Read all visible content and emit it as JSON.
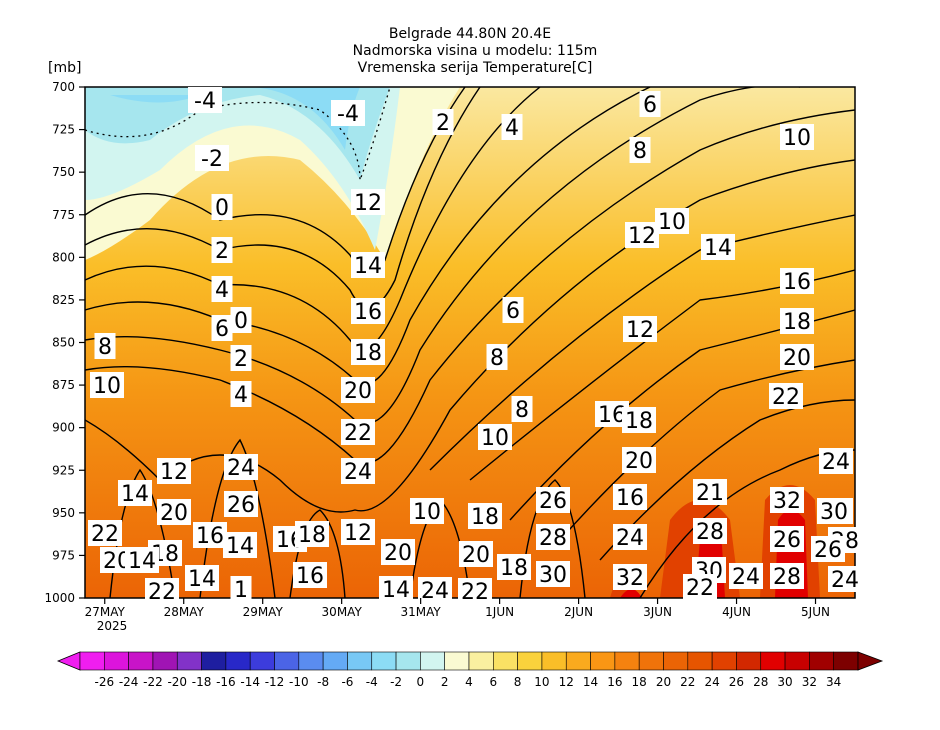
{
  "chart_data": {
    "type": "contour",
    "title_lines": [
      "Belgrade   44.80N  20.4E",
      "Nadmorska visina u modelu: 115m",
      "Vremenska serija Temperature[C]"
    ],
    "y_unit": "[mb]",
    "y_ticks": [
      700,
      725,
      750,
      775,
      800,
      825,
      850,
      875,
      900,
      925,
      950,
      975,
      1000
    ],
    "x_ticks": [
      "27MAY",
      "28MAY",
      "29MAY",
      "30MAY",
      "31MAY",
      "1JUN",
      "2JUN",
      "3JUN",
      "4JUN",
      "5JUN"
    ],
    "x_year": "2025",
    "ylim": [
      1000,
      700
    ],
    "xlim": [
      -0.25,
      9.5
    ],
    "contour_interval": 2,
    "colorbar": {
      "labels": [
        "-26",
        "-24",
        "-22",
        "-20",
        "-18",
        "-16",
        "-14",
        "-12",
        "-10",
        "-8",
        "-6",
        "-4",
        "-2",
        "0",
        "2",
        "4",
        "6",
        "8",
        "10",
        "12",
        "14",
        "16",
        "18",
        "20",
        "22",
        "24",
        "26",
        "28",
        "30",
        "32",
        "34"
      ],
      "colors": [
        "#f01ef0",
        "#dc14dc",
        "#c814c8",
        "#a014b4",
        "#8232c8",
        "#1e1ea0",
        "#2828c8",
        "#3c3cdc",
        "#4b64e6",
        "#5a8cf0",
        "#64aaf5",
        "#78c8f5",
        "#8cdcf5",
        "#a6e6ee",
        "#d2f5f0",
        "#fafad2",
        "#faf0a0",
        "#fae164",
        "#fad23c",
        "#fabe28",
        "#faaa1e",
        "#fa9614",
        "#f5820f",
        "#f0730a",
        "#eb6405",
        "#e65500",
        "#e14100",
        "#d22800",
        "#e10000",
        "#c80000",
        "#a00000",
        "#7d0000"
      ]
    },
    "label_values": [
      "-4",
      "-4",
      "2",
      "4",
      "6",
      "8",
      "10",
      "12",
      "10",
      "14",
      "16",
      "18",
      "20",
      "22",
      "24",
      "26",
      "28",
      "-2",
      "0",
      "2",
      "4",
      "6",
      "8",
      "10",
      "12",
      "14",
      "16",
      "18",
      "20",
      "22",
      "24",
      "-2",
      "0",
      "2",
      "4",
      "6",
      "8",
      "8",
      "10",
      "12",
      "16",
      "18",
      "20",
      "16",
      "12",
      "14",
      "20",
      "22",
      "24",
      "26",
      "16",
      "14",
      "18",
      "20",
      "14",
      "22",
      "14",
      "1",
      "16",
      "18",
      "16",
      "12",
      "10",
      "18",
      "20",
      "14",
      "24",
      "22",
      "20",
      "18",
      "26",
      "28",
      "30",
      "24",
      "32",
      "21",
      "28",
      "30",
      "24",
      "32",
      "26",
      "28",
      "30",
      "26",
      "24",
      "22"
    ],
    "colorbar_labels_shown": [
      "-26",
      "-24",
      "-22",
      "-20",
      "-18",
      "-16",
      "-14",
      "-12",
      "-10",
      "-8",
      "-6",
      "-4",
      "-2",
      "0",
      "2",
      "4",
      "6",
      "8",
      "10",
      "12",
      "14",
      "16",
      "18",
      "20",
      "22",
      "24",
      "26",
      "28",
      "30",
      "32",
      "34"
    ]
  }
}
